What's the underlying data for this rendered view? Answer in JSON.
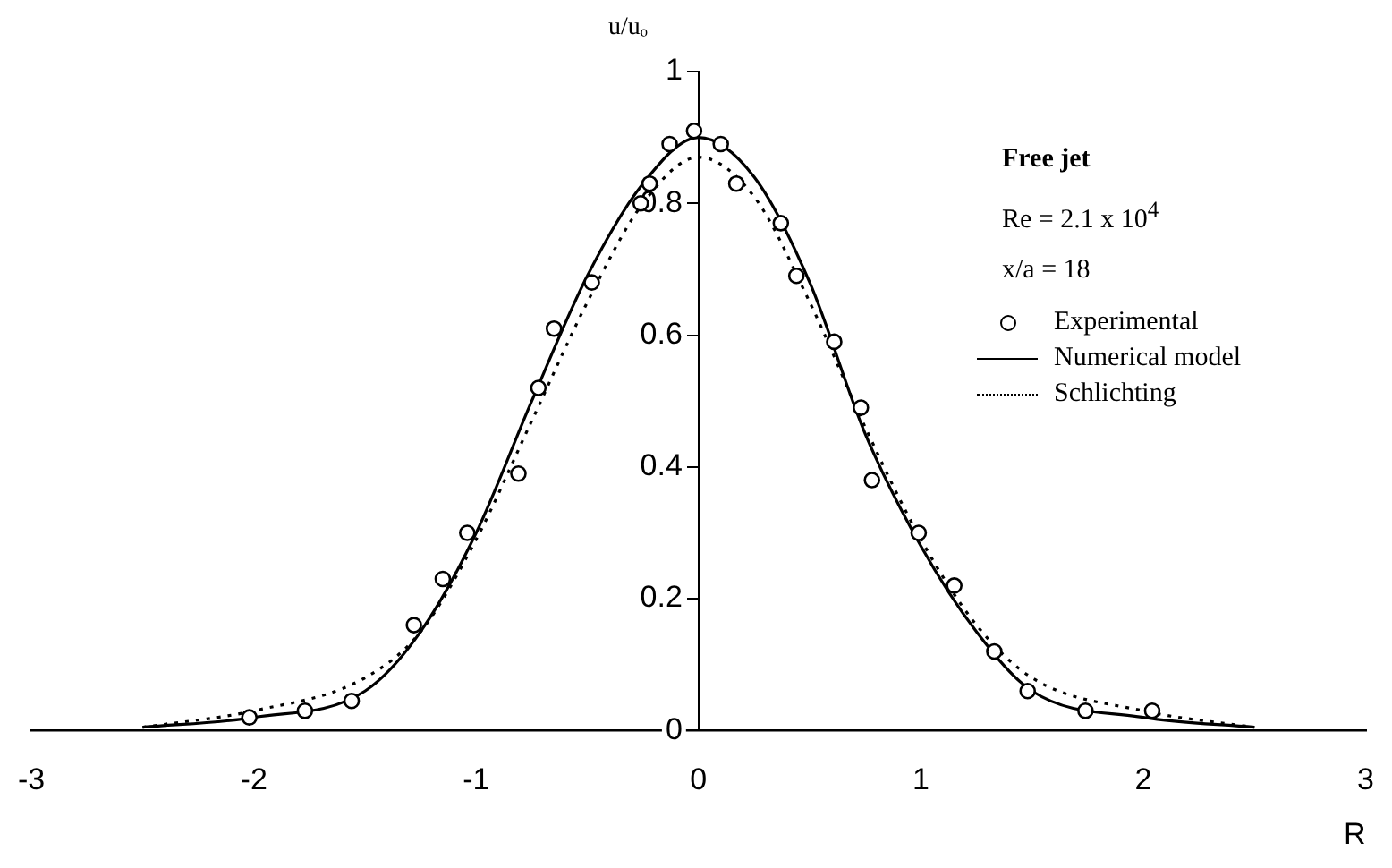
{
  "chart_data": {
    "type": "line",
    "xlabel": "R",
    "ylabel": "u/uₒ",
    "xlim": [
      -3,
      3
    ],
    "ylim": [
      0,
      1
    ],
    "xticks": [
      -3,
      -2,
      -1,
      0,
      1,
      2,
      3
    ],
    "yticks": [
      0,
      0.2,
      0.4,
      0.6,
      0.8,
      1
    ],
    "grid": false,
    "legend": "right",
    "annotations": [
      "Free jet",
      "Re = 2.1 x 10$^{4}$",
      "x/a = 18"
    ],
    "series": [
      {
        "name": "Experimental",
        "type": "scatter",
        "marker": "circle",
        "color": "#000000",
        "x": [
          -2.02,
          -1.77,
          -1.56,
          -1.28,
          -1.15,
          -1.04,
          -0.81,
          -0.72,
          -0.65,
          -0.48,
          -0.26,
          -0.22,
          -0.13,
          -0.02,
          0.1,
          0.17,
          0.37,
          0.44,
          0.61,
          0.73,
          0.78,
          0.99,
          1.15,
          1.33,
          1.48,
          1.74,
          2.04
        ],
        "values": [
          0.02,
          0.03,
          0.045,
          0.16,
          0.23,
          0.3,
          0.39,
          0.52,
          0.61,
          0.68,
          0.8,
          0.83,
          0.89,
          0.91,
          0.89,
          0.83,
          0.77,
          0.69,
          0.59,
          0.49,
          0.38,
          0.3,
          0.22,
          0.12,
          0.06,
          0.03,
          0.03
        ]
      },
      {
        "name": "Numerical model",
        "type": "line",
        "marker": "none",
        "line_style": "solid",
        "color": "#000000",
        "x": [
          -2.5,
          -2,
          -1.5,
          -1.25,
          -1,
          -0.75,
          -0.5,
          -0.25,
          0,
          0.25,
          0.5,
          0.75,
          1,
          1.25,
          1.5,
          2,
          2.5
        ],
        "values": [
          0.005,
          0.02,
          0.06,
          0.15,
          0.3,
          0.5,
          0.69,
          0.83,
          0.9,
          0.84,
          0.68,
          0.45,
          0.28,
          0.15,
          0.06,
          0.02,
          0.005
        ]
      },
      {
        "name": "Schlichting",
        "type": "line",
        "marker": "none",
        "line_style": "dotted",
        "color": "#000000",
        "x": [
          -2.5,
          -2,
          -1.5,
          -1.25,
          -1,
          -0.75,
          -0.5,
          -0.25,
          0,
          0.25,
          0.5,
          0.75,
          1,
          1.25,
          1.5,
          2,
          2.5
        ],
        "values": [
          0.005,
          0.03,
          0.08,
          0.15,
          0.29,
          0.47,
          0.65,
          0.8,
          0.87,
          0.81,
          0.65,
          0.46,
          0.29,
          0.16,
          0.08,
          0.03,
          0.005
        ]
      }
    ]
  }
}
